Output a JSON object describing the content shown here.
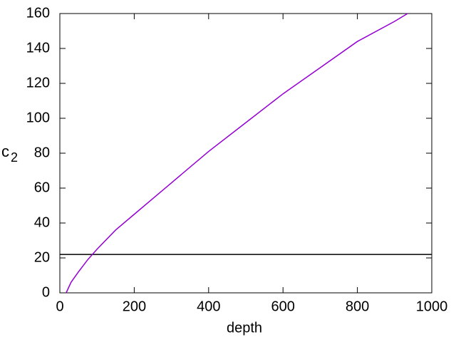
{
  "chart_data": {
    "type": "line",
    "x_label": "depth",
    "y_label": "c",
    "y_label_sub": "2",
    "x": [
      17,
      30,
      50,
      75,
      100,
      150,
      200,
      250,
      300,
      400,
      500,
      600,
      700,
      800,
      900,
      935
    ],
    "series": [
      {
        "color": "#9400d3",
        "values": [
          0,
          6,
          12,
          19,
          25,
          36,
          45,
          54,
          63,
          81,
          97.5,
          114,
          129,
          144,
          155.5,
          160
        ]
      }
    ],
    "reference_line": 22,
    "reference_color": "#000000",
    "xlim": [
      0,
      1000
    ],
    "xticks": [
      0,
      200,
      400,
      600,
      800,
      1000
    ],
    "ylim": [
      0,
      160
    ],
    "yticks": [
      0,
      20,
      40,
      60,
      80,
      100,
      120,
      140,
      160
    ]
  }
}
